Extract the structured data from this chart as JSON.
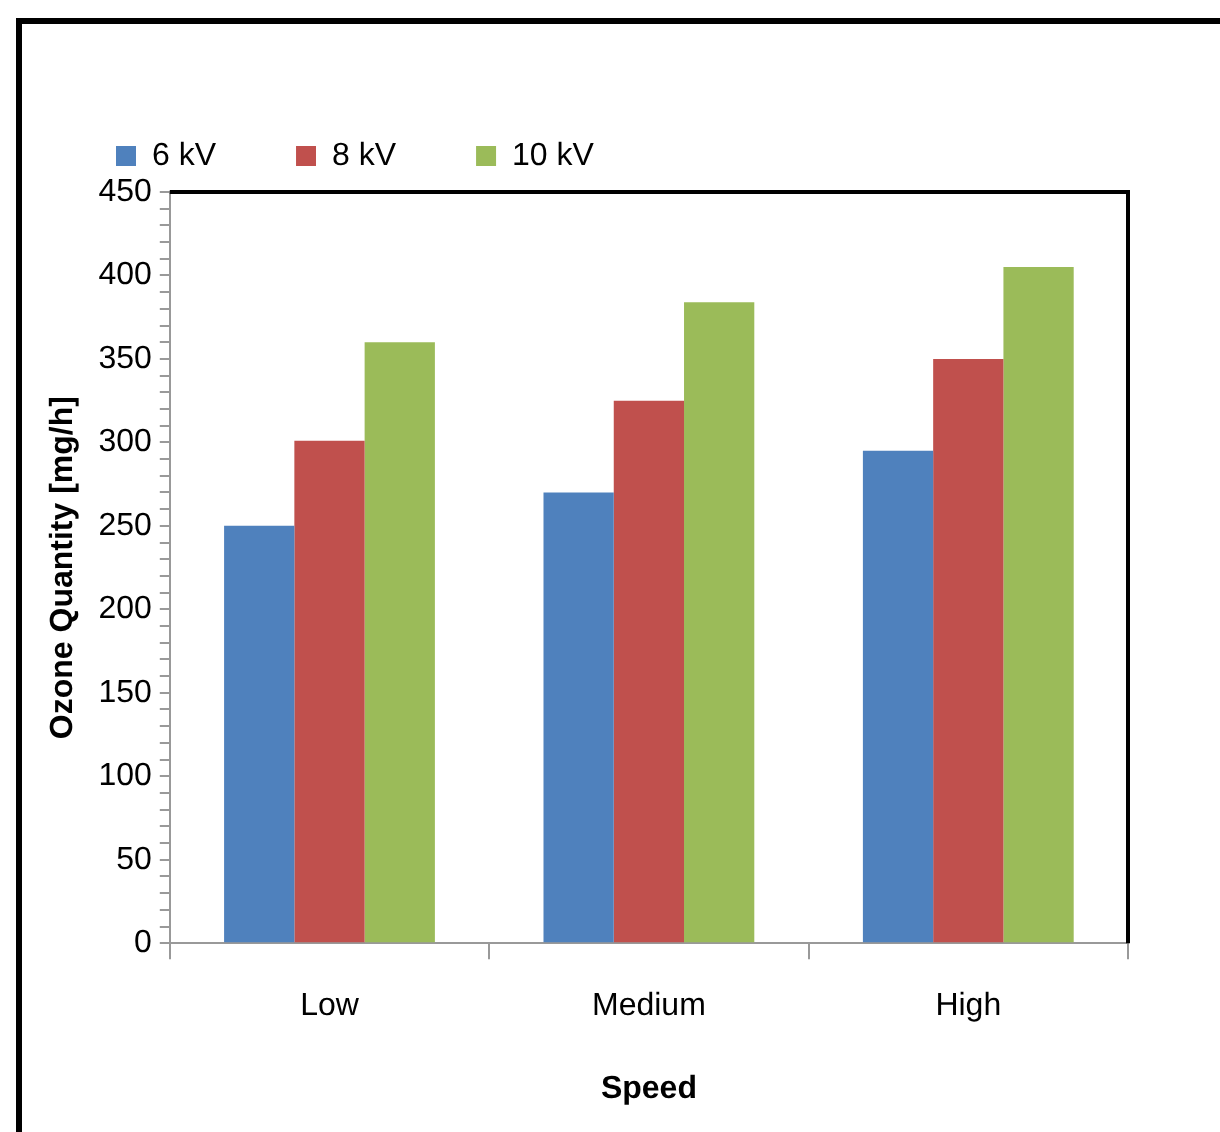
{
  "chart_data": {
    "type": "bar",
    "xlabel": "Speed",
    "ylabel": "Ozone Quantity [mg/h]",
    "categories": [
      "Low",
      "Medium",
      "High"
    ],
    "series": [
      {
        "name": "6 kV",
        "color": "#4f81bd",
        "values": [
          250,
          270,
          295
        ]
      },
      {
        "name": "8 kV",
        "color": "#c0504d",
        "values": [
          301,
          325,
          350
        ]
      },
      {
        "name": "10 kV",
        "color": "#9bbb59",
        "values": [
          360,
          384,
          405
        ]
      }
    ],
    "ylim": [
      0,
      450
    ],
    "yticks": [
      0,
      {
        "value": 10,
        "label": null
      },
      {
        "value": 20,
        "label": null
      },
      {
        "value": 30,
        "label": null
      },
      {
        "value": 40,
        "label": null
      },
      50,
      {
        "value": 60,
        "label": null
      },
      {
        "value": 70,
        "label": null
      },
      {
        "value": 80,
        "label": null
      },
      {
        "value": 90,
        "label": null
      },
      100,
      {
        "value": 110,
        "label": null
      },
      {
        "value": 120,
        "label": null
      },
      {
        "value": 130,
        "label": null
      },
      {
        "value": 140,
        "label": null
      },
      150,
      {
        "value": 160,
        "label": null
      },
      {
        "value": 170,
        "label": null
      },
      {
        "value": 180,
        "label": null
      },
      {
        "value": 190,
        "label": null
      },
      200,
      {
        "value": 210,
        "label": null
      },
      {
        "value": 220,
        "label": null
      },
      {
        "value": 230,
        "label": null
      },
      {
        "value": 240,
        "label": null
      },
      250,
      {
        "value": 260,
        "label": null
      },
      {
        "value": 270,
        "label": null
      },
      {
        "value": 280,
        "label": null
      },
      {
        "value": 290,
        "label": null
      },
      300,
      {
        "value": 310,
        "label": null
      },
      {
        "value": 320,
        "label": null
      },
      {
        "value": 330,
        "label": null
      },
      {
        "value": 340,
        "label": null
      },
      350,
      {
        "value": 360,
        "label": null
      },
      {
        "value": 370,
        "label": null
      },
      {
        "value": 380,
        "label": null
      },
      {
        "value": 390,
        "label": null
      },
      400,
      {
        "value": 410,
        "label": null
      },
      {
        "value": 420,
        "label": null
      },
      {
        "value": 430,
        "label": null
      },
      {
        "value": 440,
        "label": null
      },
      450
    ],
    "grid": false,
    "legend": "top left"
  }
}
